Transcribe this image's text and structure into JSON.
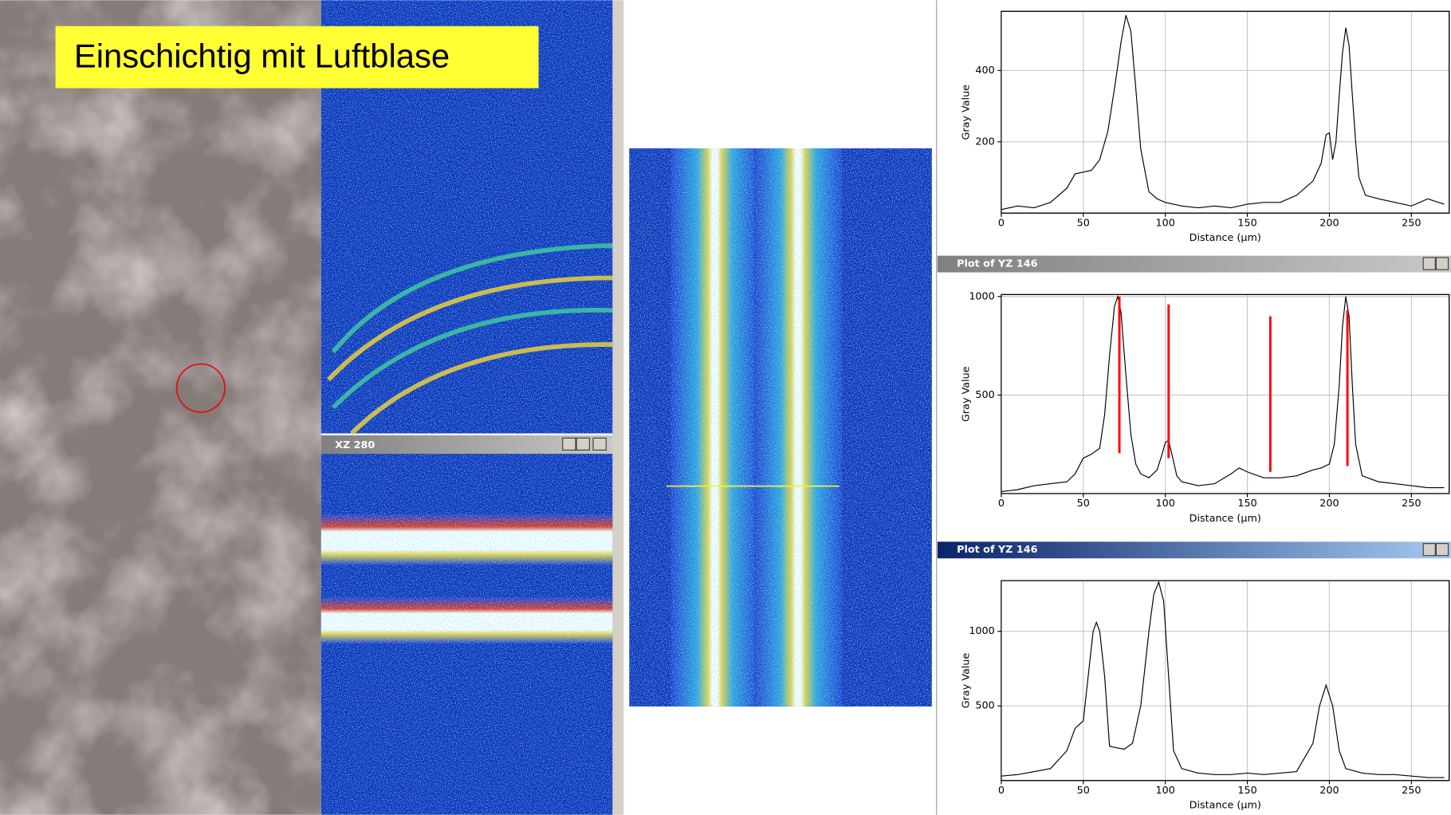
{
  "overlay_label": "Einschichtig mit Luftblase",
  "xz_window_title": "XZ 280",
  "chart_data": [
    {
      "type": "line",
      "x_label": "Distance (µm)",
      "y_label": "Gray Value",
      "color": "#000000",
      "grid": true,
      "xlim": [
        0,
        273
      ],
      "ylim": [
        0,
        566
      ],
      "xticks": [
        0,
        50,
        100,
        150,
        200,
        250
      ],
      "yticks": [
        200,
        400
      ],
      "x": [
        0,
        10,
        20,
        30,
        40,
        45,
        50,
        55,
        60,
        65,
        70,
        73,
        76,
        79,
        82,
        85,
        90,
        95,
        100,
        110,
        120,
        130,
        140,
        150,
        160,
        170,
        180,
        190,
        195,
        198,
        200,
        202,
        204,
        206,
        208,
        210,
        212,
        214,
        216,
        218,
        222,
        230,
        240,
        250,
        260,
        270
      ],
      "values": [
        10,
        20,
        15,
        30,
        70,
        110,
        115,
        120,
        150,
        230,
        380,
        480,
        555,
        510,
        350,
        180,
        60,
        40,
        30,
        20,
        15,
        20,
        15,
        25,
        30,
        30,
        50,
        90,
        140,
        220,
        225,
        150,
        200,
        330,
        450,
        520,
        470,
        330,
        200,
        100,
        50,
        40,
        30,
        20,
        40,
        25
      ]
    },
    {
      "type": "line",
      "window_title": "Plot of YZ 146",
      "x_label": "Distance (µm)",
      "y_label": "Gray Value",
      "color": "#000000",
      "grid": true,
      "xlim": [
        0,
        273
      ],
      "ylim": [
        0,
        1010
      ],
      "xticks": [
        0,
        50,
        100,
        150,
        200,
        250
      ],
      "yticks": [
        500,
        1000
      ],
      "x": [
        0,
        10,
        20,
        30,
        40,
        45,
        50,
        55,
        60,
        63,
        66,
        69,
        71,
        73,
        76,
        79,
        82,
        85,
        90,
        95,
        98,
        100,
        102,
        104,
        107,
        110,
        120,
        130,
        140,
        145,
        150,
        160,
        170,
        180,
        190,
        195,
        200,
        203,
        206,
        208,
        210,
        212,
        214,
        216,
        220,
        230,
        240,
        250,
        260,
        270
      ],
      "values": [
        10,
        20,
        40,
        50,
        60,
        100,
        180,
        200,
        230,
        400,
        700,
        950,
        1000,
        920,
        600,
        300,
        150,
        100,
        80,
        120,
        200,
        260,
        270,
        200,
        90,
        60,
        40,
        50,
        100,
        130,
        110,
        80,
        80,
        90,
        120,
        130,
        150,
        250,
        550,
        850,
        1000,
        900,
        550,
        250,
        90,
        60,
        50,
        40,
        30,
        30
      ],
      "markers_color": "#ff0000",
      "markers": [
        {
          "x": 72,
          "y": [
            205,
            1000
          ]
        },
        {
          "x": 102,
          "y": [
            180,
            960
          ]
        },
        {
          "x": 164,
          "y": [
            110,
            900
          ]
        },
        {
          "x": 211,
          "y": [
            140,
            930
          ]
        }
      ]
    },
    {
      "type": "line",
      "window_title": "Plot of YZ 146",
      "x_label": "Distance (µm)",
      "y_label": "Gray Value",
      "color": "#000000",
      "grid": true,
      "xlim": [
        0,
        273
      ],
      "ylim": [
        0,
        1340
      ],
      "xticks": [
        0,
        50,
        100,
        150,
        200,
        250
      ],
      "yticks": [
        500,
        1000
      ],
      "x": [
        0,
        10,
        20,
        30,
        40,
        45,
        50,
        53,
        56,
        58,
        60,
        63,
        66,
        70,
        75,
        80,
        85,
        90,
        93,
        96,
        99,
        102,
        105,
        110,
        120,
        130,
        140,
        150,
        160,
        170,
        180,
        190,
        194,
        198,
        202,
        206,
        210,
        220,
        230,
        240,
        250,
        260,
        270
      ],
      "values": [
        30,
        40,
        60,
        80,
        200,
        350,
        400,
        700,
        1000,
        1060,
        1000,
        700,
        230,
        220,
        210,
        250,
        500,
        1000,
        1250,
        1330,
        1200,
        700,
        200,
        80,
        50,
        40,
        40,
        50,
        40,
        50,
        60,
        250,
        500,
        640,
        500,
        200,
        80,
        50,
        40,
        40,
        30,
        20,
        20
      ]
    }
  ]
}
